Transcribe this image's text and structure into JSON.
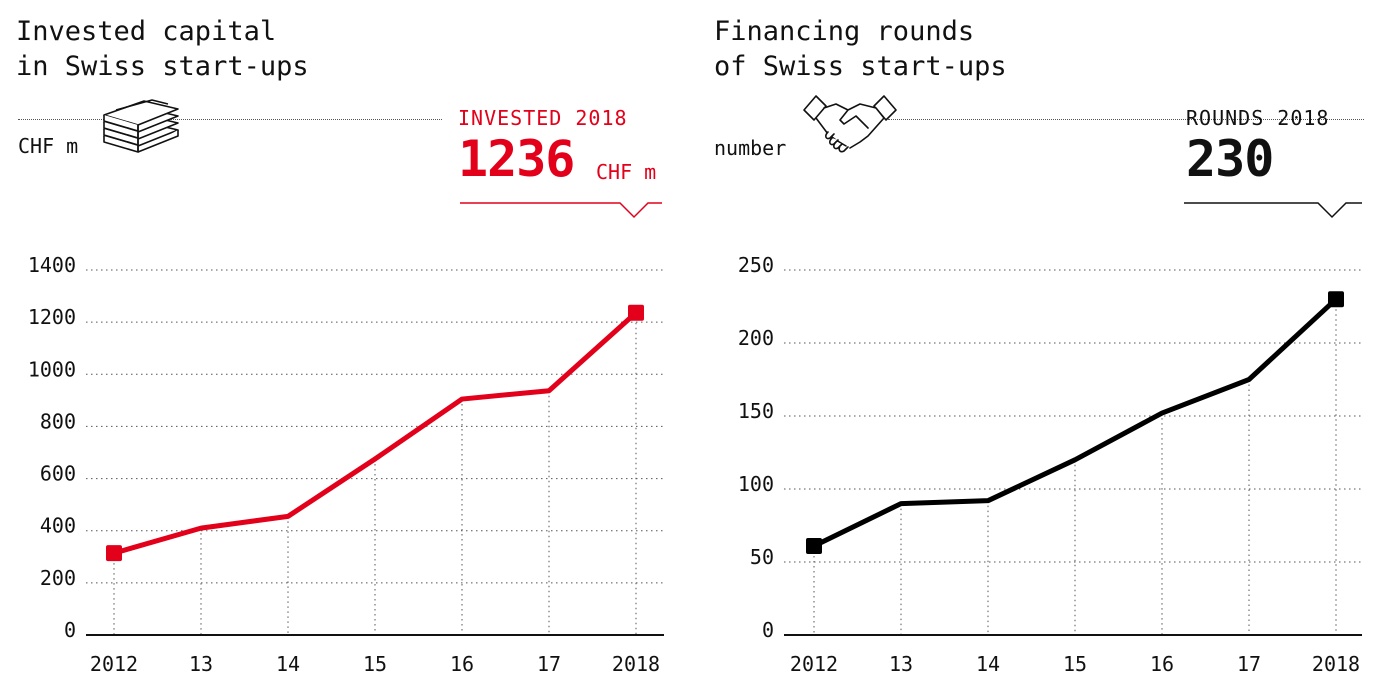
{
  "chart_data": [
    {
      "type": "line",
      "title": "Invested capital in Swiss start-ups",
      "title_lines": [
        "Invested capital",
        "in Swiss start-ups"
      ],
      "unit_label": "CHF m",
      "icon": "money-stack-icon",
      "kpi": {
        "label": "INVESTED 2018",
        "value": "1236",
        "unit": "CHF m"
      },
      "color": "#e2001a",
      "categories": [
        "2012",
        "13",
        "14",
        "15",
        "16",
        "17",
        "2018"
      ],
      "values": [
        314,
        410,
        455,
        675,
        905,
        937,
        1236
      ],
      "ylim": [
        0,
        1400
      ],
      "yticks": [
        0,
        200,
        400,
        600,
        800,
        1000,
        1200,
        1400
      ],
      "xlabel": "",
      "ylabel": "CHF m"
    },
    {
      "type": "line",
      "title": "Financing rounds of Swiss start-ups",
      "title_lines": [
        "Financing rounds",
        "of Swiss start-ups"
      ],
      "unit_label": "number",
      "icon": "handshake-icon",
      "kpi": {
        "label": "ROUNDS 2018",
        "value": "230",
        "unit": ""
      },
      "color": "#000000",
      "categories": [
        "2012",
        "13",
        "14",
        "15",
        "16",
        "17",
        "2018"
      ],
      "values": [
        61,
        90,
        92,
        120,
        152,
        175,
        230
      ],
      "ylim": [
        0,
        250
      ],
      "yticks": [
        0,
        50,
        100,
        150,
        200,
        250
      ],
      "xlabel": "",
      "ylabel": "number"
    }
  ]
}
